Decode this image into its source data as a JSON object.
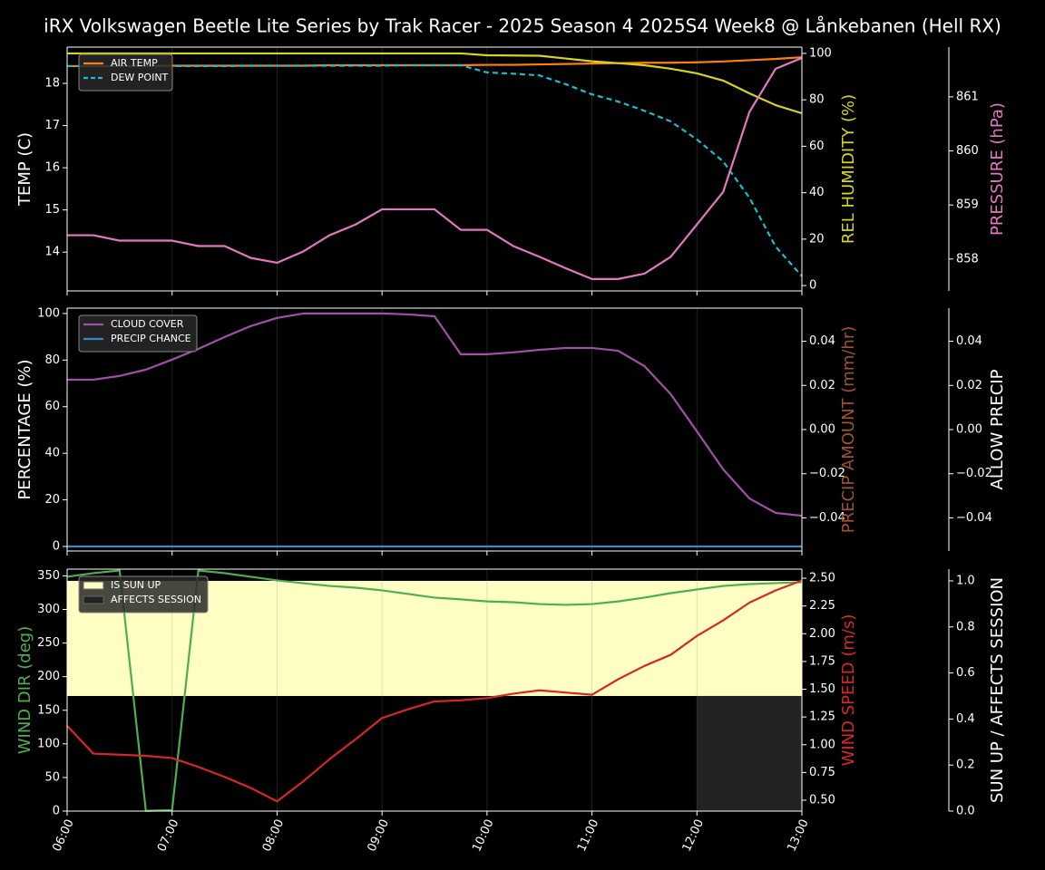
{
  "title": "iRX Volkswagen Beetle Lite Series by Trak Racer - 2025 Season 4 2025S4 Week8 @ Lånkebanen (Hell RX)",
  "chart_data": [
    {
      "type": "line",
      "grid": true,
      "legend": "upper left",
      "x": [
        6,
        6.25,
        6.5,
        6.75,
        7,
        7.25,
        7.5,
        7.75,
        8,
        8.25,
        8.5,
        8.75,
        9,
        9.25,
        9.5,
        9.75,
        10,
        10.25,
        10.5,
        10.75,
        11,
        11.25,
        11.5,
        11.75,
        12,
        12.25,
        12.5,
        12.75,
        13
      ],
      "xlim": [
        6,
        13
      ],
      "ylabel": "TEMP (C)",
      "ylim": [
        13.08,
        18.86
      ],
      "yticks": [
        14,
        15,
        16,
        17,
        18
      ],
      "y2label": "REL HUMIDITY (%)",
      "y2color": "#d4d420",
      "y2lim": [
        -2.3,
        102.7
      ],
      "y2ticks": [
        0,
        20,
        40,
        60,
        80,
        100
      ],
      "y3label": "PRESSURE (hPa)",
      "y3color": "#e377c2",
      "y3lim": [
        857.41,
        861.92
      ],
      "y3ticks": [
        858,
        859,
        860,
        861
      ],
      "series": [
        {
          "name": "AIR TEMP",
          "color": "#ff7f0e",
          "axis": "y",
          "values": [
            18.41,
            18.41,
            18.41,
            18.41,
            18.42,
            18.42,
            18.42,
            18.42,
            18.42,
            18.42,
            18.43,
            18.43,
            18.43,
            18.43,
            18.43,
            18.43,
            18.44,
            18.44,
            18.45,
            18.46,
            18.47,
            18.48,
            18.49,
            18.49,
            18.5,
            18.52,
            18.55,
            18.58,
            18.62
          ]
        },
        {
          "name": "DEW POINT",
          "color": "#17becf",
          "axis": "y",
          "dash": true,
          "values": [
            18.41,
            18.41,
            18.41,
            18.41,
            18.41,
            18.41,
            18.41,
            18.42,
            18.42,
            18.42,
            18.42,
            18.42,
            18.42,
            18.43,
            18.43,
            18.43,
            18.26,
            18.23,
            18.19,
            17.98,
            17.74,
            17.57,
            17.35,
            17.1,
            16.67,
            16.15,
            15.29,
            14.13,
            13.43
          ]
        },
        {
          "color": "#d4d420",
          "axis": "y2",
          "values": [
            100,
            100,
            100,
            100,
            100,
            100,
            100,
            100,
            100,
            100,
            100,
            100,
            100,
            100,
            100,
            100,
            99.2,
            99.1,
            99,
            97.8,
            96.6,
            95.8,
            94.9,
            93.4,
            91.4,
            88.3,
            82.8,
            77.7,
            74.2
          ]
        },
        {
          "color": "#e377c2",
          "axis": "y3",
          "values": [
            858.44,
            858.44,
            858.34,
            858.34,
            858.34,
            858.24,
            858.24,
            858.02,
            857.93,
            858.14,
            858.44,
            858.64,
            858.92,
            858.92,
            858.92,
            858.54,
            858.54,
            858.24,
            858.04,
            857.83,
            857.63,
            857.63,
            857.73,
            858.04,
            858.64,
            859.24,
            860.72,
            861.52,
            861.72
          ]
        }
      ]
    },
    {
      "type": "line",
      "grid": true,
      "legend": "upper left",
      "x": [
        6,
        6.25,
        6.5,
        6.75,
        7,
        7.25,
        7.5,
        7.75,
        8,
        8.25,
        8.5,
        8.75,
        9,
        9.25,
        9.5,
        9.75,
        10,
        10.25,
        10.5,
        10.75,
        11,
        11.25,
        11.5,
        11.75,
        12,
        12.25,
        12.5,
        12.75,
        13
      ],
      "xlim": [
        6,
        13
      ],
      "ylabel": "PERCENTAGE (%)",
      "ylim": [
        -1.95,
        102.3
      ],
      "yticks": [
        0,
        20,
        40,
        60,
        80,
        100
      ],
      "y2label": "PRECIP AMOUNT (mm/hr)",
      "y2color": "#a0522d",
      "y2lim": [
        -0.055,
        0.055
      ],
      "y2ticks": [
        {
          "value": -0.04,
          "label": "−0.04"
        },
        {
          "value": -0.02,
          "label": "−0.02"
        },
        {
          "value": 0,
          "label": "0.00"
        },
        {
          "value": 0.02,
          "label": "0.02"
        },
        {
          "value": 0.04,
          "label": "0.04"
        }
      ],
      "y3label": "ALLOW PRECIP",
      "y3lim": [
        -0.055,
        0.055
      ],
      "y3ticks": [
        {
          "value": -0.04,
          "label": "−0.04"
        },
        {
          "value": -0.02,
          "label": "−0.02"
        },
        {
          "value": 0,
          "label": "0.00"
        },
        {
          "value": 0.02,
          "label": "0.02"
        },
        {
          "value": 0.04,
          "label": "0.04"
        }
      ],
      "series": [
        {
          "name": "CLOUD COVER",
          "color": "#a050a8",
          "axis": "y",
          "values": [
            71.6,
            71.6,
            73.2,
            75.9,
            80.2,
            84.8,
            89.9,
            94.6,
            98.1,
            100,
            100,
            100,
            100,
            99.6,
            98.8,
            82.5,
            82.5,
            83.3,
            84.4,
            85.2,
            85.2,
            84,
            77.4,
            65.4,
            49.4,
            33.1,
            20.6,
            14.4,
            13.2
          ]
        },
        {
          "name": "PRECIP CHANCE",
          "color": "#3a88c8",
          "axis": "y",
          "values": [
            0,
            0,
            0,
            0,
            0,
            0,
            0,
            0,
            0,
            0,
            0,
            0,
            0,
            0,
            0,
            0,
            0,
            0,
            0,
            0,
            0,
            0,
            0,
            0,
            0,
            0,
            0,
            0,
            0
          ]
        }
      ]
    },
    {
      "type": "line",
      "grid": true,
      "legend": "upper left",
      "x": [
        6,
        6.25,
        6.5,
        6.75,
        7,
        7.25,
        7.5,
        7.75,
        8,
        8.25,
        8.5,
        8.75,
        9,
        9.25,
        9.5,
        9.75,
        10,
        10.25,
        10.5,
        10.75,
        11,
        11.25,
        11.5,
        11.75,
        12,
        12.25,
        12.5,
        12.75,
        13
      ],
      "xlim": [
        6,
        13
      ],
      "xticks": [
        {
          "value": 6,
          "label": "06:00"
        },
        {
          "value": 7,
          "label": "07:00"
        },
        {
          "value": 8,
          "label": "08:00"
        },
        {
          "value": 9,
          "label": "09:00"
        },
        {
          "value": 10,
          "label": "10:00"
        },
        {
          "value": 11,
          "label": "11:00"
        },
        {
          "value": 12,
          "label": "12:00"
        },
        {
          "value": 13,
          "label": "13:00"
        }
      ],
      "ylabel": "WIND DIR (deg)",
      "ycolor": "#4caf50",
      "ylim": [
        0,
        360
      ],
      "yticks": [
        0,
        50,
        100,
        150,
        200,
        250,
        300,
        350
      ],
      "y2label": "WIND SPEED (m/s)",
      "y2color": "#d62728",
      "y2lim": [
        0.402,
        2.582
      ],
      "y2ticks": [
        {
          "value": 0.5,
          "label": "0.50"
        },
        {
          "value": 0.75,
          "label": "0.75"
        },
        {
          "value": 1,
          "label": "1.00"
        },
        {
          "value": 1.25,
          "label": "1.25"
        },
        {
          "value": 1.5,
          "label": "1.50"
        },
        {
          "value": 1.75,
          "label": "1.75"
        },
        {
          "value": 2,
          "label": "2.00"
        },
        {
          "value": 2.25,
          "label": "2.25"
        },
        {
          "value": 2.5,
          "label": "2.50"
        }
      ],
      "y3label": "SUN UP / AFFECTS SESSION",
      "y3lim": [
        0,
        1.051
      ],
      "y3ticks": [
        {
          "value": 0,
          "label": "0.0"
        },
        {
          "value": 0.2,
          "label": "0.2"
        },
        {
          "value": 0.4,
          "label": "0.4"
        },
        {
          "value": 0.6,
          "label": "0.6"
        },
        {
          "value": 0.8,
          "label": "0.8"
        },
        {
          "value": 1,
          "label": "1.0"
        }
      ],
      "series": [
        {
          "name": "IS SUN UP",
          "type": "area",
          "color": "#ffffc4",
          "axis": "y3",
          "values": [
            1,
            1,
            1,
            1,
            1,
            1,
            1,
            1,
            1,
            1,
            1,
            1,
            1,
            1,
            1,
            1,
            1,
            1,
            1,
            1,
            1,
            1,
            1,
            1,
            1,
            1,
            1,
            1,
            1
          ]
        },
        {
          "name": "AFFECTS SESSION",
          "type": "area",
          "color": "#222222",
          "axis": "y3",
          "values": [
            0,
            0,
            0,
            0,
            0,
            0,
            0,
            0,
            0,
            0,
            0,
            0,
            0,
            0,
            0,
            0,
            0,
            0,
            0,
            0,
            0,
            0,
            0,
            0,
            1,
            1,
            1,
            1,
            1
          ]
        },
        {
          "color": "#4caf50",
          "axis": "y",
          "values": [
            348.6,
            354,
            358,
            0.3,
            1.4,
            358,
            354,
            348.6,
            343.2,
            339,
            335,
            332.4,
            328.4,
            323,
            317.6,
            315,
            312,
            310.8,
            308,
            306.8,
            308,
            312,
            317.6,
            324.3,
            329.7,
            335,
            337.8,
            339.2,
            340.5
          ]
        },
        {
          "color": "#d62728",
          "axis": "y2",
          "values": [
            1.17,
            0.92,
            0.91,
            0.9,
            0.88,
            0.8,
            0.71,
            0.61,
            0.49,
            0.67,
            0.87,
            1.05,
            1.24,
            1.32,
            1.39,
            1.4,
            1.42,
            1.46,
            1.49,
            1.47,
            1.45,
            1.59,
            1.71,
            1.81,
            1.98,
            2.12,
            2.28,
            2.39,
            2.48
          ]
        }
      ]
    }
  ]
}
